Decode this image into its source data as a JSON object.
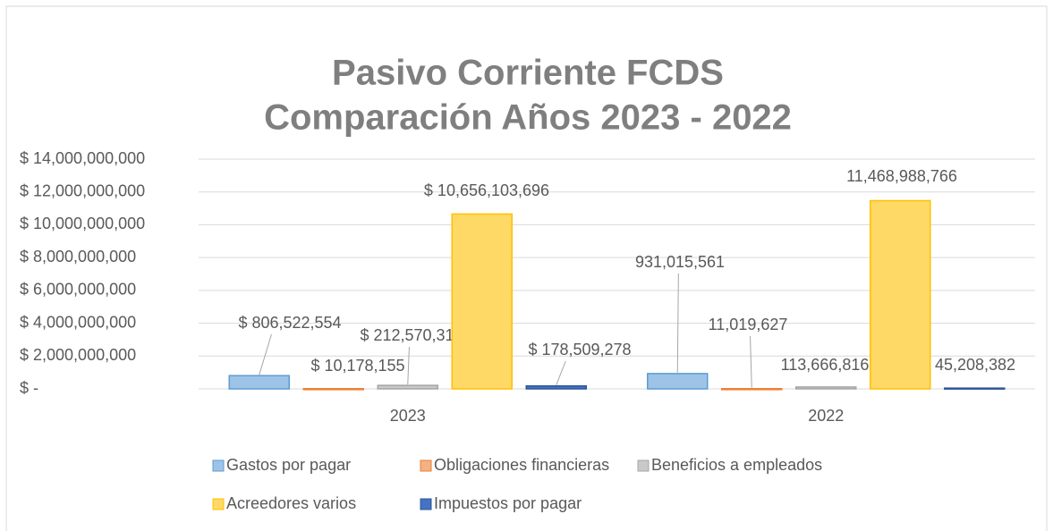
{
  "chart_data": {
    "type": "bar",
    "title": [
      "Pasivo Corriente FCDS",
      "Comparación Años 2023 - 2022"
    ],
    "categories": [
      "2023",
      "2022"
    ],
    "series": [
      {
        "name": "Gastos por pagar",
        "color": "#9dc3e6",
        "values": [
          806522554,
          931015561
        ],
        "value_labels": [
          "$ 806,522,554",
          "931,015,561"
        ]
      },
      {
        "name": "Obligaciones financieras",
        "color": "#f4b183",
        "values": [
          10178155,
          11019627
        ],
        "value_labels": [
          "$ 10,178,155",
          "11,019,627"
        ]
      },
      {
        "name": "Beneficios a empleados",
        "color": "#c9c9c9",
        "values": [
          212570310,
          113666816
        ],
        "value_labels": [
          "$ 212,570,310",
          "113,666,816"
        ]
      },
      {
        "name": "Acreedores varios",
        "color": "#ffd966",
        "values": [
          10656103696,
          11468988766
        ],
        "value_labels": [
          "$ 10,656,103,696",
          "11,468,988,766"
        ]
      },
      {
        "name": "Impuestos por pagar",
        "color": "#4472c4",
        "values": [
          178509278,
          45208382
        ],
        "value_labels": [
          "$ 178,509,278",
          "45,208,382"
        ]
      }
    ],
    "ylim": [
      0,
      14000000000
    ],
    "yticks": [
      {
        "value": 0,
        "label": "$ -"
      },
      {
        "value": 2000000000,
        "label": "$ 2,000,000,000"
      },
      {
        "value": 4000000000,
        "label": "$ 4,000,000,000"
      },
      {
        "value": 6000000000,
        "label": "$ 6,000,000,000"
      },
      {
        "value": 8000000000,
        "label": "$ 8,000,000,000"
      },
      {
        "value": 10000000000,
        "label": "$ 10,000,000,000"
      },
      {
        "value": 12000000000,
        "label": "$ 12,000,000,000"
      },
      {
        "value": 14000000000,
        "label": "$ 14,000,000,000"
      }
    ],
    "grid": true
  }
}
